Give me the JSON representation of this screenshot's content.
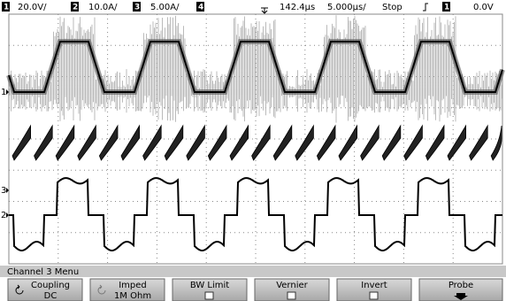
{
  "header": {
    "channels": [
      {
        "number": "1",
        "scale": "20.0V/"
      },
      {
        "number": "2",
        "scale": "10.0A/"
      },
      {
        "number": "3",
        "scale": "5.00A/"
      },
      {
        "number": "4"
      }
    ],
    "delay": "142.4µs",
    "timebase": "5.000µs/",
    "status": "Stop",
    "trigger_source": "1",
    "trigger_level": "0.0V"
  },
  "markers": [
    "1",
    "3",
    "2"
  ],
  "menu_title": "Channel 3  Menu",
  "softkeys": [
    {
      "label": "Coupling",
      "value": "DC"
    },
    {
      "label": "Imped",
      "value": "1M Ohm"
    },
    {
      "label": "BW Limit"
    },
    {
      "label": "Vernier"
    },
    {
      "label": "Invert"
    },
    {
      "label": "Probe"
    }
  ]
}
